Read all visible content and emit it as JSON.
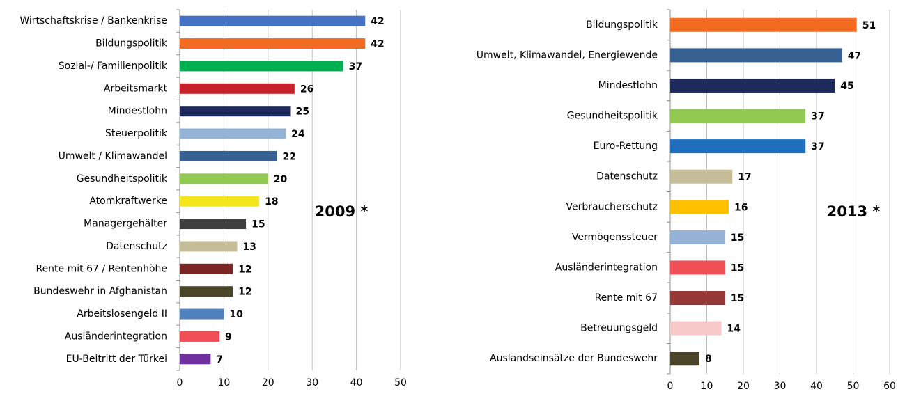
{
  "chart_data": [
    {
      "type": "bar",
      "orientation": "horizontal",
      "annotation": "2009 *",
      "categories": [
        "Wirtschaftskrise / Bankenkrise",
        "Bildungspolitik",
        "Sozial-/ Familienpolitik",
        "Arbeitsmarkt",
        "Mindestlohn",
        "Steuerpolitik",
        "Umwelt / Klimawandel",
        "Gesundheitspolitik",
        "Atomkraftwerke",
        "Managergehälter",
        "Datenschutz",
        "Rente mit 67 / Rentenhöhe",
        "Bundeswehr in Afghanistan",
        "Arbeitslosengeld II",
        "Ausländerintegration",
        "EU-Beitritt der Türkei"
      ],
      "values": [
        42,
        42,
        37,
        26,
        25,
        24,
        22,
        20,
        18,
        15,
        13,
        12,
        12,
        10,
        9,
        7
      ],
      "colors": [
        "#4472c4",
        "#f26b21",
        "#00b050",
        "#c8202a",
        "#1f2a5c",
        "#95b3d7",
        "#366092",
        "#92c950",
        "#f5e51b",
        "#3f3f3f",
        "#c4bd97",
        "#7b2525",
        "#4a4428",
        "#4f81bd",
        "#f05055",
        "#7030a0"
      ],
      "xlim": [
        0,
        50
      ],
      "xticks": [
        0,
        10,
        20,
        30,
        40,
        50
      ],
      "grid": true
    },
    {
      "type": "bar",
      "orientation": "horizontal",
      "annotation": "2013 *",
      "categories": [
        "Bildungspolitik",
        "Umwelt, Klimawandel, Energiewende",
        "Mindestlohn",
        "Gesundheitspolitik",
        "Euro-Rettung",
        "Datenschutz",
        "Verbraucherschutz",
        "Vermögenssteuer",
        "Ausländerintegration",
        "Rente mit 67",
        "Betreuungsgeld",
        "Auslandseinsätze der Bundeswehr"
      ],
      "values": [
        51,
        47,
        45,
        37,
        37,
        17,
        16,
        15,
        15,
        15,
        14,
        8
      ],
      "colors": [
        "#f26b21",
        "#366092",
        "#1f2a5c",
        "#92c950",
        "#1f6fbf",
        "#c4bd97",
        "#ffc000",
        "#95b3d7",
        "#f05055",
        "#953735",
        "#f9c8c8",
        "#4a4428"
      ],
      "xlim": [
        0,
        60
      ],
      "xticks": [
        0,
        10,
        20,
        30,
        40,
        50,
        60
      ],
      "grid": true
    }
  ]
}
